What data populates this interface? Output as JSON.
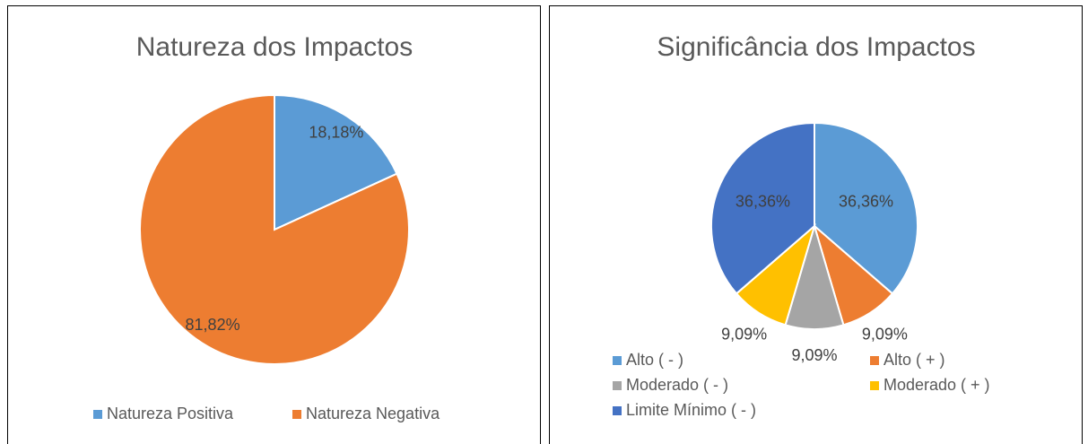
{
  "chart_data": [
    {
      "type": "pie",
      "title": "Natureza dos Impactos",
      "categories": [
        "Natureza Positiva",
        "Natureza Negativa"
      ],
      "values": [
        18.18,
        81.82
      ],
      "value_labels": [
        "18,18%",
        "81,82%"
      ],
      "colors": [
        "#5b9bd5",
        "#ed7d31"
      ],
      "legend": "bottom"
    },
    {
      "type": "pie",
      "title": "Significância dos Impactos",
      "categories": [
        "Alto ( - )",
        "Alto ( + )",
        "Moderado ( - )",
        "Moderado ( + )",
        "Limite Mínimo ( - )"
      ],
      "values": [
        36.36,
        9.09,
        9.09,
        9.09,
        36.36
      ],
      "value_labels": [
        "36,36%",
        "9,09%",
        "9,09%",
        "9,09%",
        "36,36%"
      ],
      "colors": [
        "#5b9bd5",
        "#ed7d31",
        "#a5a5a5",
        "#ffc000",
        "#4472c4"
      ],
      "legend": "bottom"
    }
  ]
}
